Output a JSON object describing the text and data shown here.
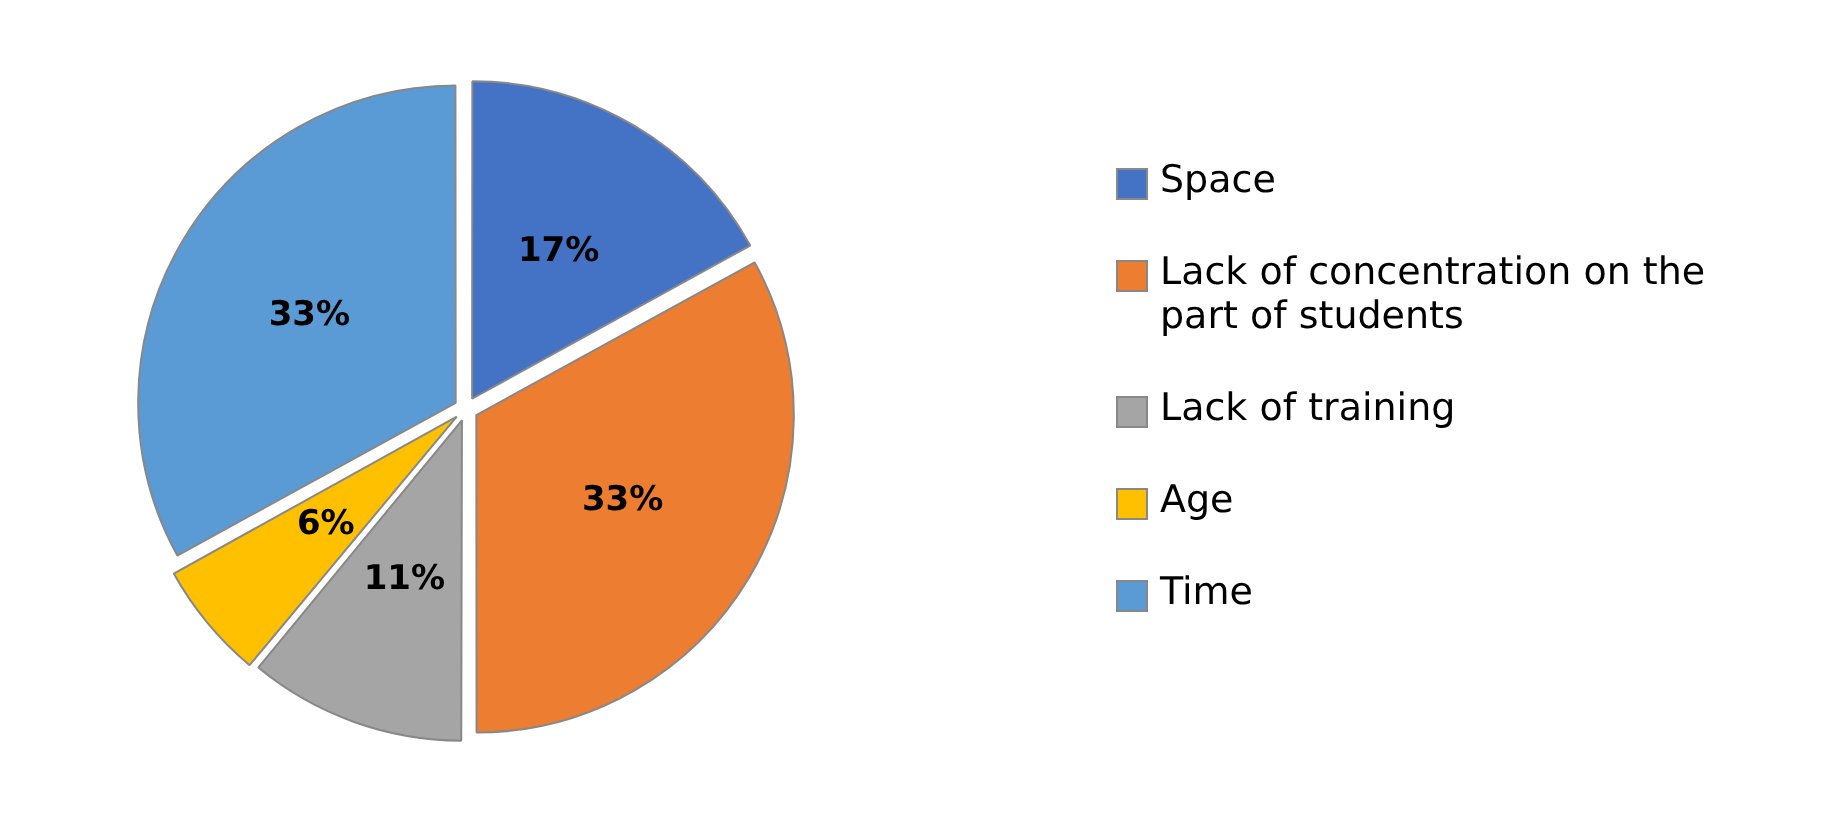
{
  "chart_data": {
    "type": "pie",
    "categories": [
      "Space",
      "Lack of concentration on the part of students",
      "Lack of training",
      "Age",
      "Time"
    ],
    "values": [
      17,
      33,
      11,
      6,
      33
    ],
    "colors": [
      "#4472c4",
      "#ed7d31",
      "#a5a5a5",
      "#ffc000",
      "#5b9bd5"
    ],
    "value_labels": [
      "17%",
      "33%",
      "11%",
      "6%",
      "33%"
    ],
    "legend": "right"
  }
}
